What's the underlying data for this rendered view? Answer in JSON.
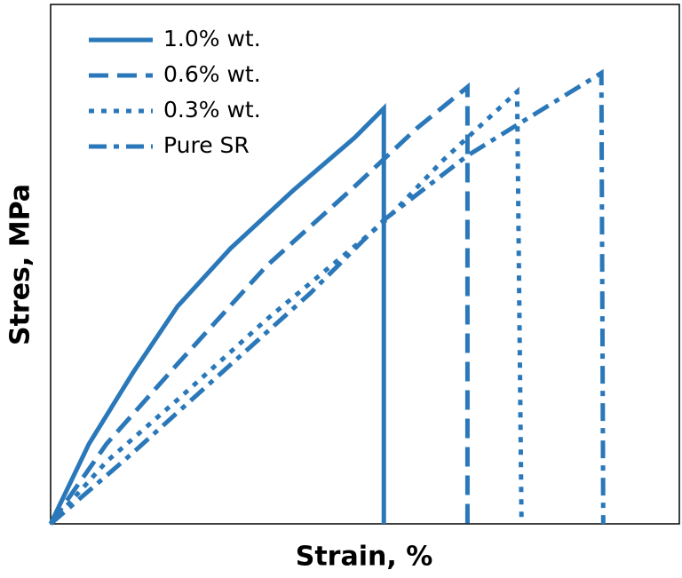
{
  "chart_data": {
    "type": "line",
    "xlabel": "Strain, %",
    "ylabel": "Stres, MPa",
    "xlim": [
      0,
      100
    ],
    "ylim": [
      0,
      100
    ],
    "legend": "upper-left",
    "series": [
      {
        "name": "1.0% wt.",
        "color": "#2a78b9",
        "style": "solid",
        "x": [
          0,
          6.1,
          13.1,
          20.2,
          28.6,
          38.5,
          48.4,
          53.0,
          53.0
        ],
        "values": [
          0,
          15.4,
          29.1,
          41.9,
          53.0,
          64.1,
          74.4,
          80.0,
          0
        ]
      },
      {
        "name": "0.6% wt.",
        "color": "#2a78b9",
        "style": "dashed",
        "x": [
          0,
          8.9,
          20.2,
          34.3,
          48.4,
          58.2,
          66.3,
          66.3
        ],
        "values": [
          0,
          15.4,
          30.8,
          49.6,
          65.0,
          76.1,
          84.1,
          0
        ]
      },
      {
        "name": "0.3% wt.",
        "color": "#2a78b9",
        "style": "dotted",
        "x": [
          0,
          8.9,
          20.2,
          34.3,
          53.0,
          62.5,
          74.2,
          74.9
        ],
        "values": [
          0,
          12.0,
          23.9,
          39.3,
          58.1,
          70.1,
          83.2,
          0
        ]
      },
      {
        "name": "Pure SR",
        "color": "#2a78b9",
        "style": "dashdot",
        "x": [
          0,
          13.1,
          27.2,
          41.3,
          53.0,
          66.3,
          76.6,
          87.6,
          87.9
        ],
        "values": [
          0,
          13.7,
          29.1,
          44.4,
          58.5,
          70.9,
          78.6,
          86.8,
          0
        ]
      }
    ]
  }
}
